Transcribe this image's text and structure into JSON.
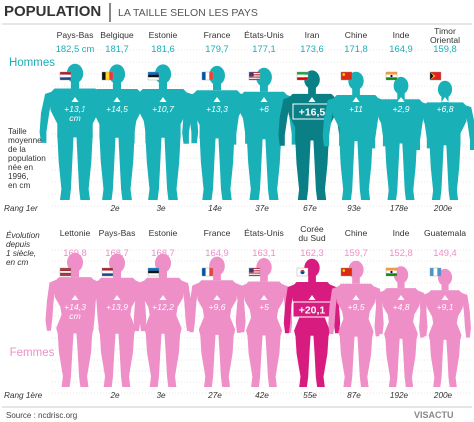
{
  "header": {
    "title": "POPULATION",
    "subtitle": "LA TAILLE SELON LES PAYS"
  },
  "side_labels": {
    "height_label": [
      "Taille",
      "moyenne",
      "de la",
      "population",
      "née en",
      "1996,",
      "en cm"
    ],
    "evolution_label": [
      "Évolution",
      "depuis",
      "1 siècle,",
      "en cm"
    ],
    "rank_men": "Rang 1er",
    "rank_women": "Rang 1ère"
  },
  "footer": {
    "source": "Source : ncdrisc.org",
    "brand": "VISACTU"
  },
  "colors": {
    "men": "#1ab0b8",
    "men_highlight": "#0a7f86",
    "women": "#ee8fc8",
    "women_highlight": "#d81b7f",
    "grid": "#cfcfcf",
    "text": "#333333"
  },
  "chart_data": [
    {
      "type": "bar",
      "series_label": "Hommes",
      "unit": "cm",
      "categories": [
        "Pays-Bas",
        "Belgique",
        "Estonie",
        "France",
        "États-Unis",
        "Iran",
        "Chine",
        "Inde",
        "Timor Oriental"
      ],
      "heights": [
        "182,5 cm",
        "181,7",
        "181,6",
        "179,7",
        "177,1",
        "173,6",
        "171,8",
        "164,9",
        "159,8"
      ],
      "height_values": [
        182.5,
        181.7,
        181.6,
        179.7,
        177.1,
        173.6,
        171.8,
        164.9,
        159.8
      ],
      "evolution": [
        "+13,1 cm",
        "+14,5",
        "+10,7",
        "+13,3",
        "+6",
        "+16,5",
        "+11",
        "+2,9",
        "+6,8"
      ],
      "evolution_values": [
        13.1,
        14.5,
        10.7,
        13.3,
        6,
        16.5,
        11,
        2.9,
        6.8
      ],
      "ranks": [
        "1er",
        "2e",
        "3e",
        "14e",
        "37e",
        "67e",
        "93e",
        "178e",
        "200e"
      ],
      "flags": [
        "netherlands-flag",
        "belgium-flag",
        "estonia-flag",
        "france-flag",
        "usa-flag",
        "iran-flag",
        "china-flag",
        "india-flag",
        "timor-flag"
      ],
      "highlight_index": 5
    },
    {
      "type": "bar",
      "series_label": "Femmes",
      "unit": "cm",
      "categories": [
        "Lettonie",
        "Pays-Bas",
        "Estonie",
        "France",
        "États-Unis",
        "Corée du Sud",
        "Chine",
        "Inde",
        "Guatemala"
      ],
      "heights": [
        "169,8",
        "168,7",
        "168,7",
        "164,9",
        "163,1",
        "162,3",
        "159,7",
        "152,8",
        "149,4"
      ],
      "height_values": [
        169.8,
        168.7,
        168.7,
        164.9,
        163.1,
        162.3,
        159.7,
        152.8,
        149.4
      ],
      "evolution": [
        "+14,3 cm",
        "+13,9",
        "+12,2",
        "+9,6",
        "+5",
        "+20,1",
        "+9,5",
        "+4,8",
        "+9,1"
      ],
      "evolution_values": [
        14.3,
        13.9,
        12.2,
        9.6,
        5,
        20.1,
        9.5,
        4.8,
        9.1
      ],
      "ranks": [
        "1ère",
        "2e",
        "3e",
        "27e",
        "42e",
        "55e",
        "87e",
        "192e",
        "200e"
      ],
      "flags": [
        "latvia-flag",
        "netherlands-flag",
        "estonia-flag",
        "france-flag",
        "usa-flag",
        "south-korea-flag",
        "china-flag",
        "india-flag",
        "guatemala-flag"
      ],
      "highlight_index": 5
    }
  ]
}
